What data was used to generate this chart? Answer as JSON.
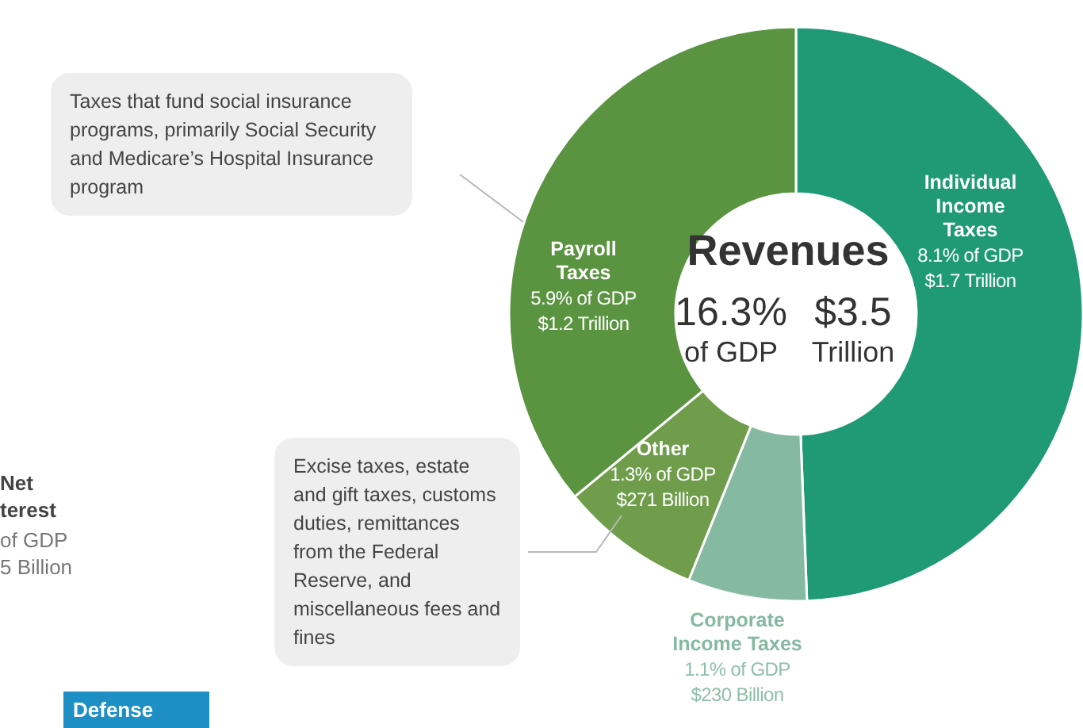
{
  "chart_data": [
    {
      "type": "donut",
      "title": "Revenues",
      "categories": [
        "Individual Income Taxes",
        "Corporate Income Taxes",
        "Other",
        "Payroll Taxes"
      ],
      "values": [
        8.1,
        1.1,
        1.3,
        5.9
      ],
      "colors": [
        "#1f9a74",
        "#86b9a1",
        "#6f9d4c",
        "#5a9440"
      ],
      "value_labels": [
        "8.1% of GDP\n$1.7 Trillion",
        "1.1% of GDP\n$230 Billion",
        "1.3% of GDP\n$271 Billion",
        "5.9% of GDP\n$1.2 Trillion"
      ],
      "annotations": [
        "16.3% of GDP",
        "$3.5 Trillion",
        "Taxes that fund social insurance programs, primarily Social Security and Medicare’s Hospital Insurance program",
        "Excise taxes, estate and gift taxes, customs duties, remittances from the Federal Reserve, and miscellaneous fees and fines"
      ]
    },
    {
      "type": "other",
      "annotations": [
        "Net",
        "terest",
        "of GDP",
        "5 Billion",
        "Defense"
      ]
    }
  ]
}
